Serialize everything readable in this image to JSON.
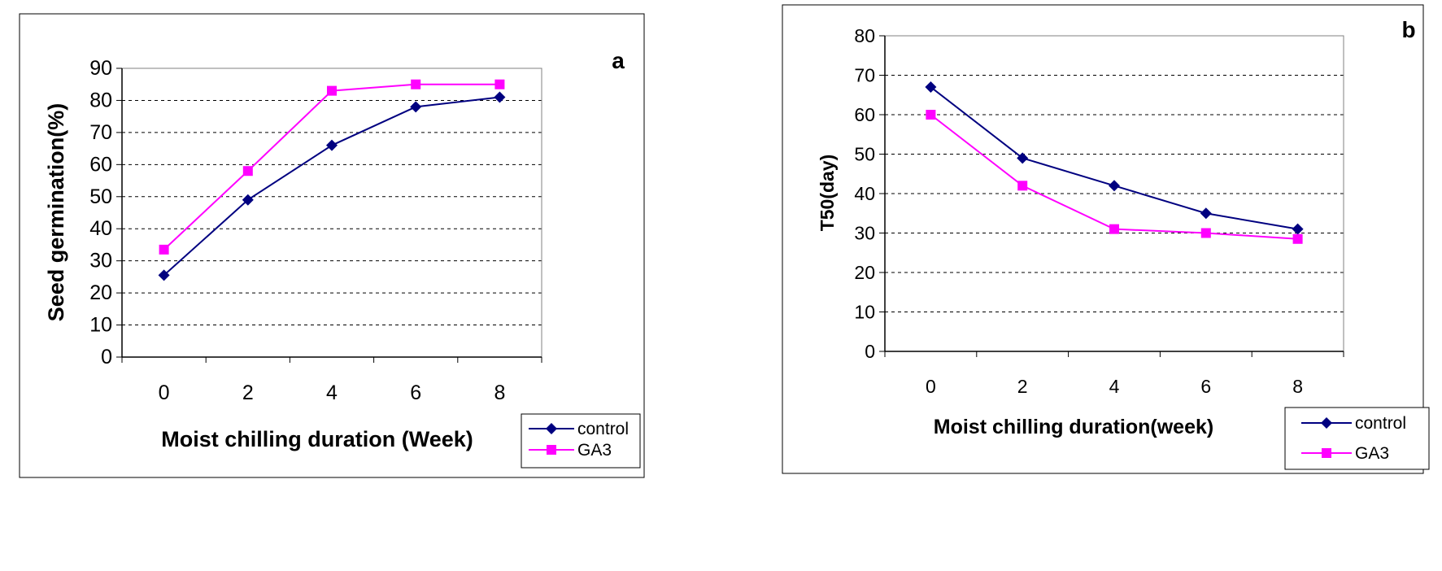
{
  "colors": {
    "control": "#000080",
    "ga3": "#FF00FF",
    "grid": "#000000",
    "plot_bg": "#FFFFFF",
    "frame": "#000000"
  },
  "chart_data": [
    {
      "type": "line",
      "panel_label": "a",
      "title": "",
      "xlabel": "Moist chilling duration (Week)",
      "ylabel": "Seed germination(%)",
      "categories": [
        "0",
        "2",
        "4",
        "6",
        "8"
      ],
      "ylim": [
        0,
        90
      ],
      "yticks": [
        "0",
        "10",
        "20",
        "30",
        "40",
        "50",
        "60",
        "70",
        "80",
        "90"
      ],
      "grid": "horizontal dashed",
      "legend_position": "bottom-right",
      "series": [
        {
          "name": "control",
          "marker": "diamond",
          "values": [
            25.5,
            49,
            66,
            78,
            81
          ]
        },
        {
          "name": "GA3",
          "marker": "square",
          "values": [
            33.5,
            58,
            83,
            85,
            85
          ]
        }
      ]
    },
    {
      "type": "line",
      "panel_label": "b",
      "title": "",
      "xlabel": "Moist chilling duration(week)",
      "ylabel": "T50(day)",
      "categories": [
        "0",
        "2",
        "4",
        "6",
        "8"
      ],
      "ylim": [
        0,
        80
      ],
      "yticks": [
        "0",
        "10",
        "20",
        "30",
        "40",
        "50",
        "60",
        "70",
        "80"
      ],
      "grid": "horizontal dashed",
      "legend_position": "bottom-right",
      "series": [
        {
          "name": "control",
          "marker": "diamond",
          "values": [
            67,
            49,
            42,
            35,
            31
          ]
        },
        {
          "name": "GA3",
          "marker": "square",
          "values": [
            60,
            42,
            31,
            30,
            28.5
          ]
        }
      ]
    }
  ]
}
